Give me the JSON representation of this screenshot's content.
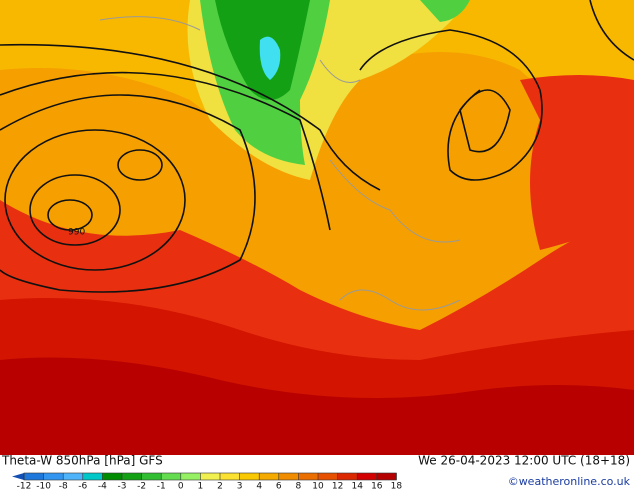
{
  "header": {
    "title": "Theta-W 850hPa [hPa] GFS",
    "datetime": "We 26-04-2023 12:00 UTC (18+18)",
    "credit": "©weatheronline.co.uk"
  },
  "map": {
    "labels": [
      "990"
    ]
  },
  "colorbar": {
    "ticks": [
      -12,
      -10,
      -8,
      -6,
      -4,
      -3,
      -2,
      -1,
      0,
      1,
      2,
      3,
      4,
      6,
      8,
      10,
      12,
      14,
      16,
      18
    ],
    "colors": [
      "#1450b4",
      "#1e78dc",
      "#3296f0",
      "#50b4fa",
      "#00c8c8",
      "#008c00",
      "#14a014",
      "#32be32",
      "#64dc50",
      "#96f064",
      "#f0f050",
      "#fae132",
      "#fac800",
      "#f5aa00",
      "#f08c00",
      "#eb6e00",
      "#e65000",
      "#dc2800",
      "#d20000",
      "#b40000"
    ]
  }
}
